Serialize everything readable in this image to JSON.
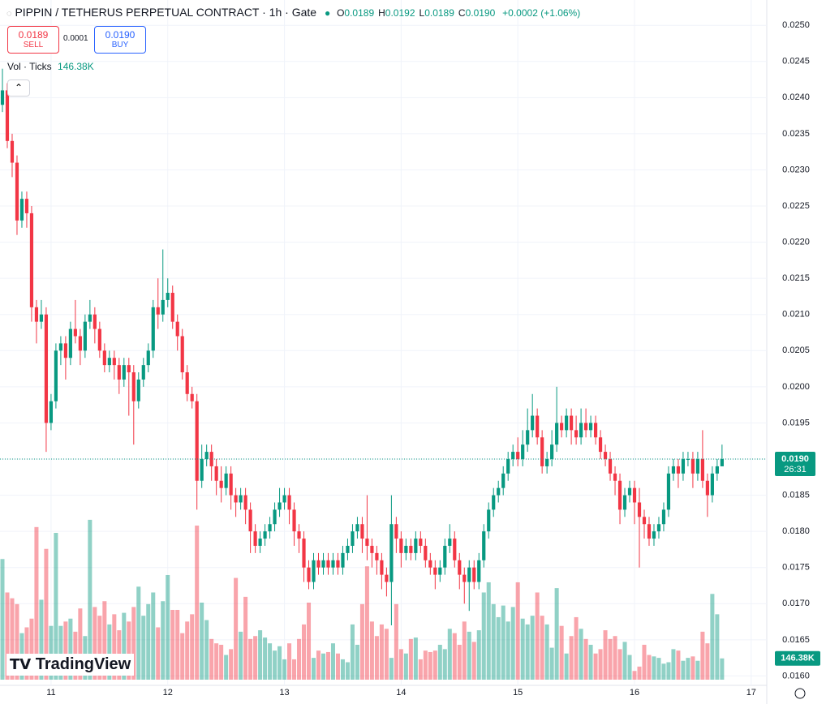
{
  "header": {
    "title": "PIPPIN / TETHERUS PERPETUAL CONTRACT · 1h · Gate",
    "ohlc": [
      {
        "key": "O",
        "value": "0.0189"
      },
      {
        "key": "H",
        "value": "0.0192"
      },
      {
        "key": "L",
        "value": "0.0189"
      },
      {
        "key": "C",
        "value": "0.0190"
      }
    ],
    "change": "+0.0002 (+1.06%)"
  },
  "trade": {
    "sell_price": "0.0189",
    "sell": "SELL",
    "spread": "0.0001",
    "buy_price": "0.0190",
    "buy": "BUY"
  },
  "volume_legend": "Vol · Ticks",
  "price_tag": {
    "price": "0.0190",
    "countdown": "26:31"
  },
  "logo": "TradingView",
  "chart_data": {
    "type": "candlestick",
    "up_color": "#089981",
    "down_color": "#f23645",
    "grid": true,
    "xlim": [
      229.5,
      387.2
    ],
    "xticks": [
      {
        "value": 240,
        "label": "11"
      },
      {
        "value": 264,
        "label": "12"
      },
      {
        "value": 288,
        "label": "13"
      },
      {
        "value": 312,
        "label": "14"
      },
      {
        "value": 336,
        "label": "15"
      },
      {
        "value": 360,
        "label": "16"
      },
      {
        "value": 384,
        "label": "17"
      }
    ],
    "ylim": [
      0.01587,
      0.02535
    ],
    "yticks": [
      {
        "value": 0.016,
        "label": "0.0160"
      },
      {
        "value": 0.0165,
        "label": "0.0165"
      },
      {
        "value": 0.017,
        "label": "0.0170"
      },
      {
        "value": 0.0175,
        "label": "0.0175"
      },
      {
        "value": 0.018,
        "label": "0.0180"
      },
      {
        "value": 0.0185,
        "label": "0.0185"
      },
      {
        "value": 0.019,
        "label": "0.0190"
      },
      {
        "value": 0.0195,
        "label": "0.0195"
      },
      {
        "value": 0.02,
        "label": "0.0200"
      },
      {
        "value": 0.0205,
        "label": "0.0205"
      },
      {
        "value": 0.021,
        "label": "0.0210"
      },
      {
        "value": 0.0215,
        "label": "0.0215"
      },
      {
        "value": 0.022,
        "label": "0.0220"
      },
      {
        "value": 0.0225,
        "label": "0.0225"
      },
      {
        "value": 0.023,
        "label": "0.0230"
      },
      {
        "value": 0.0235,
        "label": "0.0235"
      },
      {
        "value": 0.024,
        "label": "0.0240"
      },
      {
        "value": 0.0245,
        "label": "0.0245"
      },
      {
        "value": 0.025,
        "label": "0.0250"
      }
    ],
    "x": [
      230,
      231,
      232,
      233,
      234,
      235,
      236,
      237,
      238,
      239,
      240,
      241,
      242,
      243,
      244,
      245,
      246,
      247,
      248,
      249,
      250,
      251,
      252,
      253,
      254,
      255,
      256,
      257,
      258,
      259,
      260,
      261,
      262,
      263,
      264,
      265,
      266,
      267,
      268,
      269,
      270,
      271,
      272,
      273,
      274,
      275,
      276,
      277,
      278,
      279,
      280,
      281,
      282,
      283,
      284,
      285,
      286,
      287,
      288,
      289,
      290,
      291,
      292,
      293,
      294,
      295,
      296,
      297,
      298,
      299,
      300,
      301,
      302,
      303,
      304,
      305,
      306,
      307,
      308,
      309,
      310,
      311,
      312,
      313,
      314,
      315,
      316,
      317,
      318,
      319,
      320,
      321,
      322,
      323,
      324,
      325,
      326,
      327,
      328,
      329,
      330,
      331,
      332,
      333,
      334,
      335,
      336,
      337,
      338,
      339,
      340,
      341,
      342,
      343,
      344,
      345,
      346,
      347,
      348,
      349,
      350,
      351,
      352,
      353,
      354,
      355,
      356,
      357,
      358,
      359,
      360,
      361,
      362,
      363,
      364,
      365,
      366,
      367,
      368,
      369,
      370,
      371,
      372,
      373,
      374,
      375,
      376,
      377,
      378
    ],
    "open": [
      0.0239,
      0.0241,
      0.0234,
      0.0231,
      0.0223,
      0.0226,
      0.0224,
      0.0211,
      0.0209,
      0.021,
      0.0195,
      0.0198,
      0.0205,
      0.0206,
      0.0204,
      0.0208,
      0.0207,
      0.0205,
      0.0209,
      0.021,
      0.0208,
      0.0205,
      0.0203,
      0.0204,
      0.0203,
      0.0201,
      0.0203,
      0.0202,
      0.0198,
      0.0201,
      0.0203,
      0.0205,
      0.0211,
      0.021,
      0.0212,
      0.0213,
      0.0209,
      0.0207,
      0.0202,
      0.0199,
      0.0198,
      0.0187,
      0.019,
      0.0191,
      0.0189,
      0.0187,
      0.0186,
      0.0188,
      0.0185,
      0.0184,
      0.0185,
      0.0183,
      0.018,
      0.0178,
      0.0179,
      0.018,
      0.0181,
      0.0183,
      0.0184,
      0.0185,
      0.0183,
      0.018,
      0.0179,
      0.0175,
      0.0173,
      0.0176,
      0.0175,
      0.0176,
      0.0175,
      0.0176,
      0.0175,
      0.0177,
      0.0178,
      0.018,
      0.0181,
      0.0179,
      0.0178,
      0.0177,
      0.0176,
      0.0174,
      0.0173,
      0.0181,
      0.0179,
      0.0177,
      0.0178,
      0.0177,
      0.0179,
      0.0178,
      0.0176,
      0.0175,
      0.0174,
      0.0175,
      0.0178,
      0.0179,
      0.0176,
      0.0174,
      0.0173,
      0.0175,
      0.0173,
      0.0176,
      0.018,
      0.0183,
      0.0185,
      0.0186,
      0.0188,
      0.019,
      0.0191,
      0.019,
      0.0192,
      0.0194,
      0.0196,
      0.0193,
      0.0189,
      0.019,
      0.0192,
      0.0195,
      0.0194,
      0.0196,
      0.0194,
      0.0193,
      0.0195,
      0.0194,
      0.0195,
      0.0193,
      0.0191,
      0.019,
      0.0188,
      0.0187,
      0.0183,
      0.0185,
      0.0186,
      0.0184,
      0.0182,
      0.0181,
      0.0179,
      0.018,
      0.0181,
      0.0183,
      0.0188,
      0.0189,
      0.0188,
      0.019,
      0.019,
      0.0188,
      0.019,
      0.0187,
      0.0185,
      0.0188,
      0.0189
    ],
    "high": [
      0.0244,
      0.0242,
      0.0235,
      0.0232,
      0.0227,
      0.0227,
      0.0225,
      0.0212,
      0.0212,
      0.0211,
      0.0199,
      0.0206,
      0.0207,
      0.0207,
      0.0209,
      0.0212,
      0.0208,
      0.021,
      0.0212,
      0.0211,
      0.0209,
      0.0206,
      0.0205,
      0.0205,
      0.0204,
      0.0204,
      0.0204,
      0.0203,
      0.0202,
      0.0204,
      0.0206,
      0.0212,
      0.0215,
      0.0219,
      0.0215,
      0.0214,
      0.021,
      0.0208,
      0.0203,
      0.02,
      0.0199,
      0.0192,
      0.0192,
      0.0192,
      0.019,
      0.0189,
      0.0189,
      0.0189,
      0.0186,
      0.0186,
      0.0186,
      0.0184,
      0.0181,
      0.018,
      0.0181,
      0.0182,
      0.0184,
      0.0186,
      0.0186,
      0.0186,
      0.0184,
      0.0181,
      0.018,
      0.0176,
      0.0177,
      0.0177,
      0.0177,
      0.0177,
      0.0177,
      0.0177,
      0.0178,
      0.0179,
      0.0181,
      0.0182,
      0.0182,
      0.0185,
      0.0179,
      0.0178,
      0.0177,
      0.0175,
      0.0185,
      0.0182,
      0.018,
      0.0179,
      0.0179,
      0.018,
      0.018,
      0.0179,
      0.0177,
      0.0176,
      0.0176,
      0.0179,
      0.0181,
      0.018,
      0.0177,
      0.0175,
      0.0176,
      0.0176,
      0.0177,
      0.0181,
      0.0184,
      0.0186,
      0.0187,
      0.0189,
      0.0191,
      0.0192,
      0.0193,
      0.0194,
      0.0197,
      0.0199,
      0.0197,
      0.0194,
      0.0191,
      0.0194,
      0.02,
      0.0196,
      0.0197,
      0.0197,
      0.0196,
      0.0197,
      0.0197,
      0.0196,
      0.0196,
      0.0194,
      0.0192,
      0.0191,
      0.0189,
      0.0188,
      0.0186,
      0.0187,
      0.0187,
      0.0186,
      0.0183,
      0.0182,
      0.0181,
      0.0182,
      0.0184,
      0.0189,
      0.019,
      0.019,
      0.0191,
      0.0191,
      0.0191,
      0.0191,
      0.0194,
      0.0188,
      0.0189,
      0.019,
      0.0192
    ],
    "low": [
      0.0238,
      0.0233,
      0.0229,
      0.0221,
      0.0222,
      0.0222,
      0.0209,
      0.0206,
      0.0208,
      0.0191,
      0.0194,
      0.0197,
      0.0203,
      0.0201,
      0.0203,
      0.0206,
      0.0203,
      0.0204,
      0.0208,
      0.0206,
      0.0204,
      0.0202,
      0.0202,
      0.0201,
      0.0199,
      0.02,
      0.0196,
      0.0192,
      0.0197,
      0.02,
      0.0202,
      0.0204,
      0.0208,
      0.0209,
      0.0211,
      0.0208,
      0.0205,
      0.0201,
      0.0198,
      0.0197,
      0.0183,
      0.0186,
      0.0189,
      0.0187,
      0.0185,
      0.0184,
      0.0185,
      0.0183,
      0.0182,
      0.0183,
      0.0181,
      0.0177,
      0.0177,
      0.0177,
      0.0178,
      0.0179,
      0.018,
      0.0182,
      0.0183,
      0.0181,
      0.0178,
      0.0177,
      0.0173,
      0.0172,
      0.0172,
      0.0174,
      0.0174,
      0.0174,
      0.0174,
      0.0174,
      0.0174,
      0.0176,
      0.0177,
      0.0179,
      0.0177,
      0.0176,
      0.0175,
      0.0174,
      0.0172,
      0.0171,
      0.0167,
      0.0177,
      0.0175,
      0.0176,
      0.0176,
      0.0176,
      0.0177,
      0.0175,
      0.0174,
      0.0172,
      0.0173,
      0.0174,
      0.0177,
      0.0175,
      0.0172,
      0.017,
      0.0169,
      0.0172,
      0.0172,
      0.0175,
      0.0179,
      0.0182,
      0.0184,
      0.0185,
      0.0187,
      0.0189,
      0.0189,
      0.0189,
      0.0191,
      0.0193,
      0.0192,
      0.0188,
      0.0188,
      0.0189,
      0.0191,
      0.0193,
      0.0193,
      0.0192,
      0.0192,
      0.0192,
      0.0193,
      0.0193,
      0.0192,
      0.019,
      0.0189,
      0.0187,
      0.0185,
      0.0181,
      0.0182,
      0.0184,
      0.0181,
      0.0175,
      0.0179,
      0.0178,
      0.0178,
      0.0179,
      0.018,
      0.0182,
      0.0187,
      0.0186,
      0.0187,
      0.0189,
      0.0186,
      0.0187,
      0.0186,
      0.0182,
      0.0184,
      0.0187,
      0.0189
    ],
    "close": [
      0.0241,
      0.0234,
      0.0231,
      0.0223,
      0.0226,
      0.0224,
      0.0211,
      0.0209,
      0.021,
      0.0195,
      0.0198,
      0.0205,
      0.0206,
      0.0204,
      0.0208,
      0.0207,
      0.0205,
      0.0209,
      0.021,
      0.0208,
      0.0205,
      0.0203,
      0.0204,
      0.0203,
      0.0201,
      0.0203,
      0.0202,
      0.0198,
      0.0201,
      0.0203,
      0.0205,
      0.0211,
      0.021,
      0.0212,
      0.0213,
      0.0209,
      0.0207,
      0.0202,
      0.0199,
      0.0198,
      0.0187,
      0.019,
      0.0191,
      0.0189,
      0.0187,
      0.0186,
      0.0188,
      0.0185,
      0.0184,
      0.0185,
      0.0183,
      0.018,
      0.0178,
      0.0179,
      0.018,
      0.0181,
      0.0183,
      0.0184,
      0.0185,
      0.0183,
      0.018,
      0.0179,
      0.0175,
      0.0173,
      0.0176,
      0.0175,
      0.0176,
      0.0175,
      0.0176,
      0.0175,
      0.0177,
      0.0178,
      0.018,
      0.0181,
      0.0179,
      0.0178,
      0.0177,
      0.0176,
      0.0174,
      0.0173,
      0.0181,
      0.0179,
      0.0177,
      0.0178,
      0.0177,
      0.0179,
      0.0178,
      0.0176,
      0.0175,
      0.0174,
      0.0175,
      0.0178,
      0.0179,
      0.0176,
      0.0174,
      0.0173,
      0.0175,
      0.0173,
      0.0176,
      0.018,
      0.0183,
      0.0185,
      0.0186,
      0.0188,
      0.019,
      0.0191,
      0.019,
      0.0192,
      0.0194,
      0.0196,
      0.0193,
      0.0189,
      0.019,
      0.0192,
      0.0195,
      0.0194,
      0.0196,
      0.0194,
      0.0193,
      0.0195,
      0.0194,
      0.0195,
      0.0193,
      0.0191,
      0.019,
      0.0188,
      0.0187,
      0.0183,
      0.0185,
      0.0186,
      0.0184,
      0.0182,
      0.0181,
      0.0179,
      0.018,
      0.0181,
      0.0183,
      0.0188,
      0.0189,
      0.0188,
      0.019,
      0.019,
      0.0188,
      0.019,
      0.0187,
      0.0185,
      0.0188,
      0.0189,
      0.019
    ],
    "volume": {
      "ylim": [
        0,
        1250000
      ],
      "values": [
        830000,
        600000,
        560000,
        520000,
        320000,
        360000,
        420000,
        1050000,
        550000,
        900000,
        370000,
        1010000,
        370000,
        400000,
        420000,
        330000,
        490000,
        300000,
        1100000,
        500000,
        440000,
        540000,
        380000,
        450000,
        340000,
        460000,
        400000,
        500000,
        640000,
        440000,
        520000,
        600000,
        360000,
        540000,
        720000,
        480000,
        480000,
        320000,
        400000,
        450000,
        1060000,
        530000,
        410000,
        280000,
        250000,
        240000,
        170000,
        210000,
        700000,
        330000,
        570000,
        280000,
        300000,
        340000,
        290000,
        250000,
        200000,
        230000,
        140000,
        250000,
        140000,
        280000,
        380000,
        530000,
        150000,
        200000,
        180000,
        190000,
        250000,
        180000,
        140000,
        120000,
        380000,
        240000,
        520000,
        780000,
        400000,
        300000,
        380000,
        350000,
        150000,
        520000,
        210000,
        180000,
        280000,
        290000,
        140000,
        200000,
        190000,
        200000,
        240000,
        210000,
        350000,
        320000,
        240000,
        400000,
        330000,
        260000,
        340000,
        600000,
        670000,
        520000,
        430000,
        510000,
        400000,
        500000,
        670000,
        420000,
        380000,
        440000,
        600000,
        440000,
        380000,
        220000,
        630000,
        370000,
        180000,
        300000,
        430000,
        350000,
        280000,
        240000,
        180000,
        210000,
        340000,
        280000,
        300000,
        210000,
        260000,
        170000,
        60000,
        90000,
        240000,
        170000,
        160000,
        150000,
        110000,
        120000,
        210000,
        200000,
        130000,
        150000,
        160000,
        130000,
        330000,
        250000,
        590000,
        450000,
        146380
      ],
      "value_labels": [
        null,
        null,
        null,
        null,
        null,
        null,
        null,
        null,
        null,
        null,
        null,
        null,
        null,
        null,
        null,
        null,
        null,
        null,
        null,
        null,
        null,
        null,
        null,
        null,
        null,
        null,
        null,
        null,
        null,
        null,
        null,
        null,
        null,
        null,
        null,
        null,
        null,
        null,
        null,
        null,
        null,
        null,
        null,
        null,
        null,
        null,
        null,
        null,
        null,
        null,
        null,
        null,
        null,
        null,
        null,
        null,
        null,
        null,
        null,
        null,
        null,
        null,
        null,
        null,
        null,
        null,
        null,
        null,
        null,
        null,
        null,
        null,
        null,
        null,
        null,
        null,
        null,
        null,
        null,
        null,
        null,
        null,
        null,
        null,
        null,
        null,
        null,
        null,
        null,
        null,
        null,
        null,
        null,
        null,
        null,
        null,
        null,
        null,
        null,
        null,
        null,
        null,
        null,
        null,
        null,
        null,
        null,
        null,
        null,
        null,
        null,
        null,
        null,
        null,
        null,
        null,
        null,
        null,
        null,
        null,
        null,
        null,
        null,
        null,
        null,
        null,
        null,
        null,
        null,
        null,
        null,
        null,
        null,
        null,
        null,
        null,
        null,
        null,
        null,
        null,
        null,
        null,
        null,
        null,
        null,
        null,
        null,
        null,
        "146.38K"
      ]
    }
  }
}
